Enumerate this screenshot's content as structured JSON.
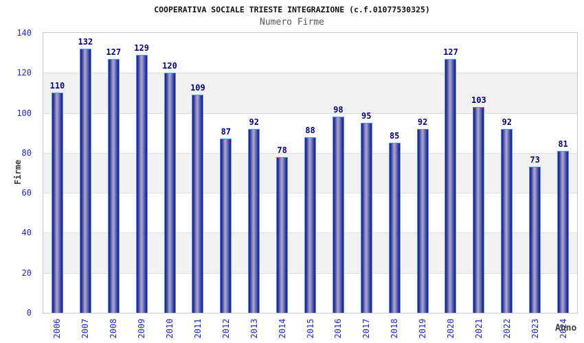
{
  "chart_data": {
    "type": "bar",
    "title": "COOPERATIVA SOCIALE TRIESTE INTEGRAZIONE (c.f.01077530325)",
    "subtitle": "Numero Firme",
    "xlabel": "Anno",
    "ylabel": "Firme",
    "categories": [
      "2006",
      "2007",
      "2008",
      "2009",
      "2010",
      "2011",
      "2012",
      "2013",
      "2014",
      "2015",
      "2016",
      "2017",
      "2018",
      "2019",
      "2020",
      "2021",
      "2022",
      "2023",
      "2024"
    ],
    "values": [
      110,
      132,
      127,
      129,
      120,
      109,
      87,
      92,
      78,
      88,
      98,
      95,
      85,
      92,
      127,
      103,
      92,
      73,
      81
    ],
    "ylim": [
      0,
      140
    ],
    "ytick_step": 20,
    "yticks": [
      0,
      20,
      40,
      60,
      80,
      100,
      120,
      140
    ],
    "grid": "alternating horizontal bands, gridline every 20",
    "legend": "none",
    "colors": {
      "tick_label": "#2424dd",
      "value_label": "#000084",
      "axis_title": "#3d3d3d",
      "subtitle": "#555555",
      "band_gray": "#f2f2f2",
      "plot_border": "#c8c8c8",
      "bar_edge_dark": "#20208a",
      "bar_mid": "#31319c",
      "bar_center_light": "#a7abd1",
      "bar_outline": "#4a9bee"
    }
  }
}
